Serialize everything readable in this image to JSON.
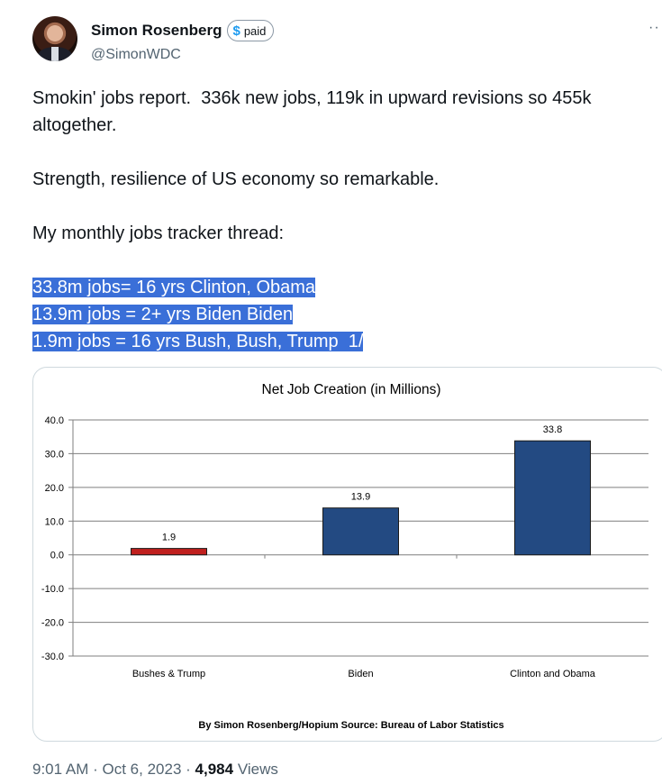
{
  "author": {
    "display_name": "Simon Rosenberg",
    "badge": "paid",
    "handle": "@SimonWDC"
  },
  "tweet": {
    "line1": "Smokin' jobs report.  336k new jobs, 119k in upward revisions so 455k altogether.",
    "line2": "Strength, resilience of US economy so remarkable.",
    "line3": "My monthly jobs tracker thread:",
    "hl1": "33.8m jobs= 16 yrs Clinton, Obama",
    "hl2": "13.9m jobs = 2+ yrs Biden Biden",
    "hl3": "1.9m jobs = 16 yrs Bush, Bush, Trump  1/"
  },
  "meta": {
    "time": "9:01 AM",
    "sep1": "·",
    "date": "Oct 6, 2023",
    "sep2": "·",
    "views_count": "4,984",
    "views_label": "Views"
  },
  "chart_data": {
    "type": "bar",
    "title": "Net Job Creation (in Millions)",
    "categories": [
      "Bushes & Trump",
      "Biden",
      "Clinton and Obama"
    ],
    "values": [
      1.9,
      13.9,
      33.8
    ],
    "value_labels": [
      "1.9",
      "13.9",
      "33.8"
    ],
    "bar_colors": [
      "#c0201e",
      "#234a82",
      "#234a82"
    ],
    "ylim": [
      -30,
      40
    ],
    "yticks": [
      "40.0",
      "30.0",
      "20.0",
      "10.0",
      "0.0",
      "-10.0",
      "-20.0",
      "-30.0"
    ],
    "ytick_values": [
      40,
      30,
      20,
      10,
      0,
      -10,
      -20,
      -30
    ],
    "grid": true,
    "xlabel": "",
    "ylabel": "",
    "source": "By Simon Rosenberg/Hopium Source: Bureau of Labor Statistics"
  }
}
